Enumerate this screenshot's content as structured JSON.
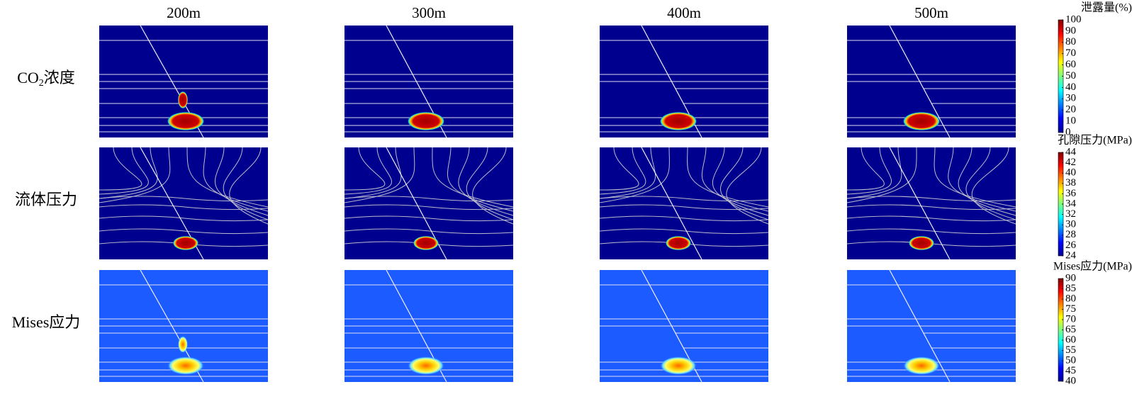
{
  "columns": [
    "200m",
    "300m",
    "400m",
    "500m"
  ],
  "rows": [
    {
      "label_parts": [
        "CO",
        "2",
        "浓度"
      ]
    },
    {
      "label_parts": [
        "流体压力"
      ]
    },
    {
      "label_parts": [
        "Mises应力"
      ]
    }
  ],
  "colorbars": [
    {
      "title": "泄露量(%)",
      "range": [
        0,
        100
      ],
      "ticks": [
        0,
        10,
        20,
        30,
        40,
        50,
        60,
        70,
        80,
        90,
        100
      ]
    },
    {
      "title": "孔隙压力(MPa)",
      "range": [
        24,
        44
      ],
      "ticks": [
        24,
        26,
        28,
        30,
        32,
        34,
        36,
        38,
        40,
        42,
        44
      ]
    },
    {
      "title": "Mises应力(MPa)",
      "range": [
        40,
        90
      ],
      "ticks": [
        40,
        45,
        50,
        55,
        60,
        65,
        70,
        75,
        80,
        85,
        90
      ]
    }
  ]
}
